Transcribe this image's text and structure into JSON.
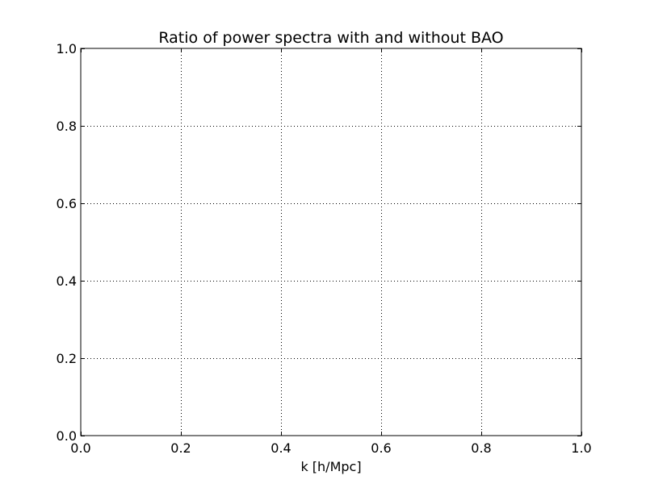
{
  "chart_data": {
    "type": "line",
    "title": "Ratio of power spectra with and without BAO",
    "xlabel": "k [h/Mpc]",
    "ylabel": "",
    "xlim": [
      0.0,
      1.0
    ],
    "ylim": [
      0.0,
      1.0
    ],
    "x_ticks": [
      "0.0",
      "0.2",
      "0.4",
      "0.6",
      "0.8",
      "1.0"
    ],
    "y_ticks": [
      "0.0",
      "0.2",
      "0.4",
      "0.6",
      "0.8",
      "1.0"
    ],
    "grid": true,
    "grid_style": "dotted",
    "series": [],
    "colors": {
      "axes": "#000000",
      "grid": "#000000",
      "background": "#ffffff"
    }
  }
}
